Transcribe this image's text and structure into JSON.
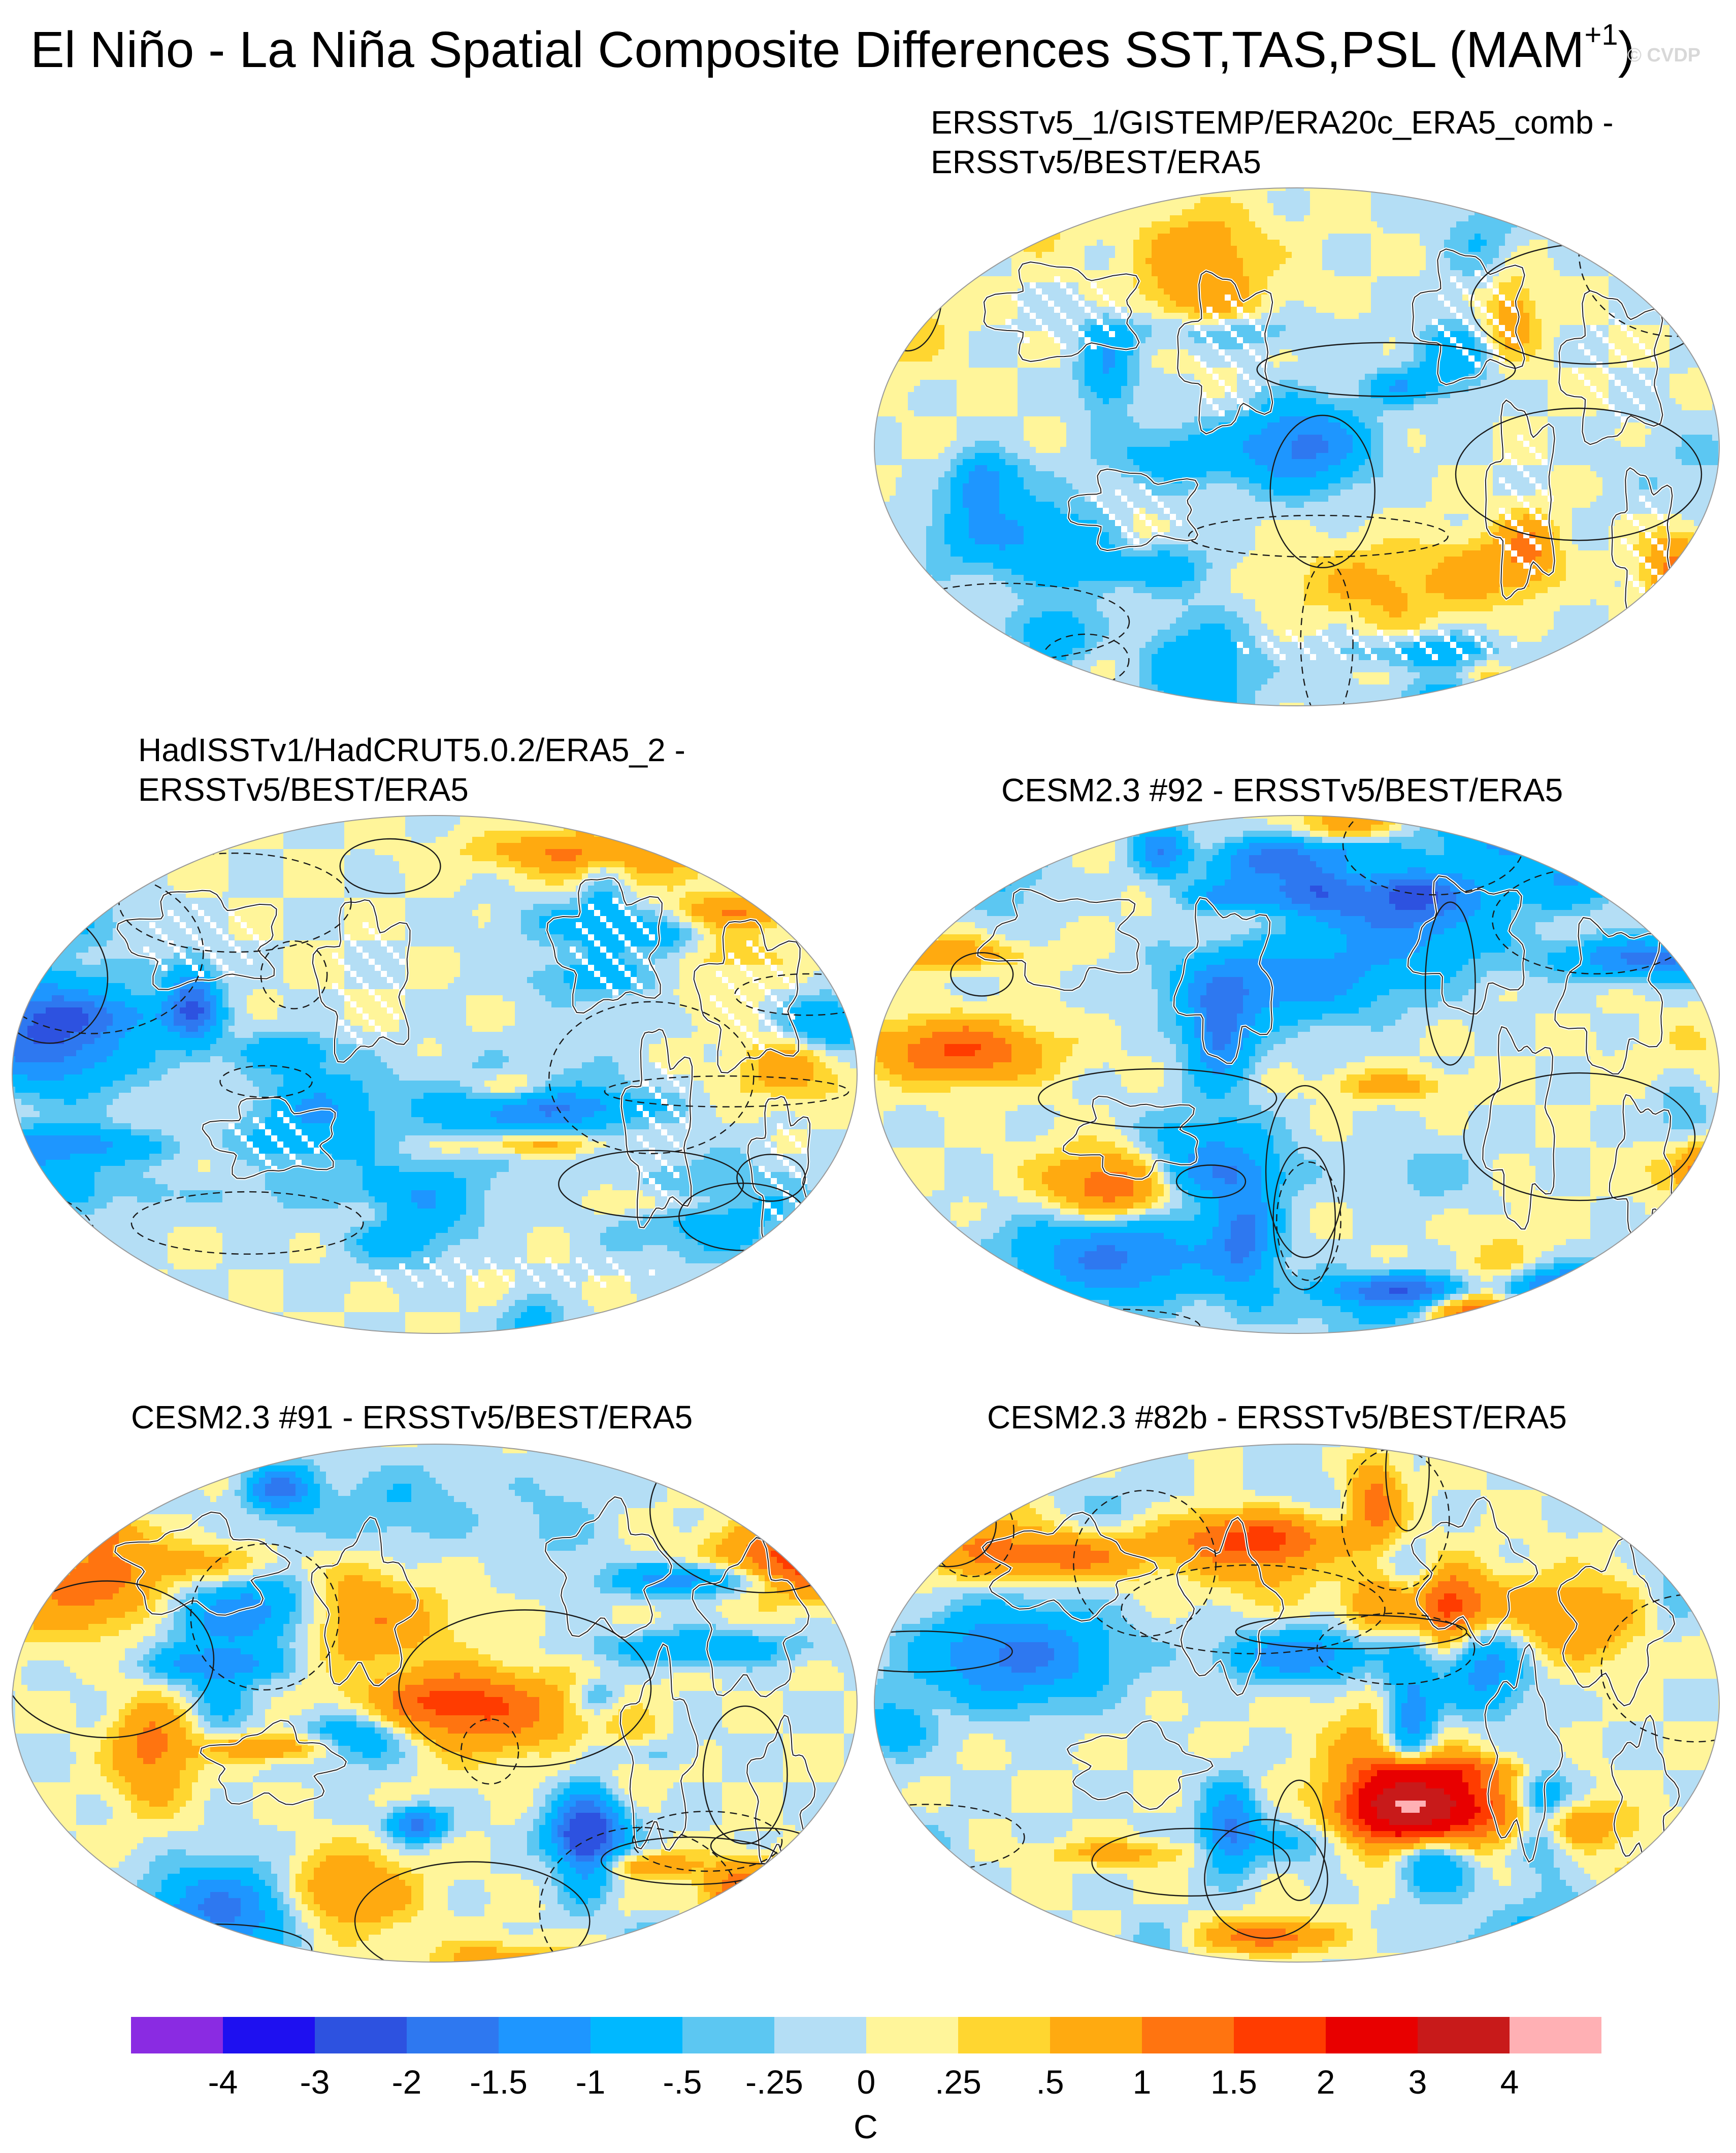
{
  "figure": {
    "title": "El Niño - La Niña Spatial Composite Differences SST,TAS,PSL (MAM",
    "title_sup": "+1",
    "title_end": ")",
    "watermark": "© CVDP"
  },
  "panels": [
    {
      "id": "top-right",
      "title_lines": [
        "ERSSTv5_1/GISTEMP/ERA20c_ERA5_comb -",
        "ERSSTv5/BEST/ERA5"
      ],
      "seed": 11,
      "land_mask": true
    },
    {
      "id": "middle-left",
      "title_lines": [
        "HadISSTv1/HadCRUT5.0.2/ERA5_2 -",
        "ERSSTv5/BEST/ERA5"
      ],
      "seed": 23,
      "land_mask": true
    },
    {
      "id": "middle-right",
      "title_lines": [
        "CESM2.3 #92 - ERSSTv5/BEST/ERA5"
      ],
      "seed": 37,
      "land_mask": false
    },
    {
      "id": "bottom-left",
      "title_lines": [
        "CESM2.3 #91 - ERSSTv5/BEST/ERA5"
      ],
      "seed": 53,
      "land_mask": false
    },
    {
      "id": "bottom-right",
      "title_lines": [
        "CESM2.3 #82b - ERSSTv5/BEST/ERA5"
      ],
      "seed": 71,
      "land_mask": false
    }
  ],
  "colorbar": {
    "units": "C",
    "tick_labels": [
      "-4",
      "-3",
      "-2",
      "-1.5",
      "-1",
      "-.5",
      "-.25",
      "0",
      ".25",
      ".5",
      "1",
      "1.5",
      "2",
      "3",
      "4"
    ],
    "colors": [
      "#8a2be2",
      "#1e10f0",
      "#2d52e0",
      "#2e78f0",
      "#1e96ff",
      "#00b8ff",
      "#5cc7f2",
      "#b4def5",
      "#fff59a",
      "#ffd630",
      "#ffaa10",
      "#ff7410",
      "#ff3c00",
      "#e80000",
      "#c81a1a",
      "#ffb0b4"
    ]
  }
}
